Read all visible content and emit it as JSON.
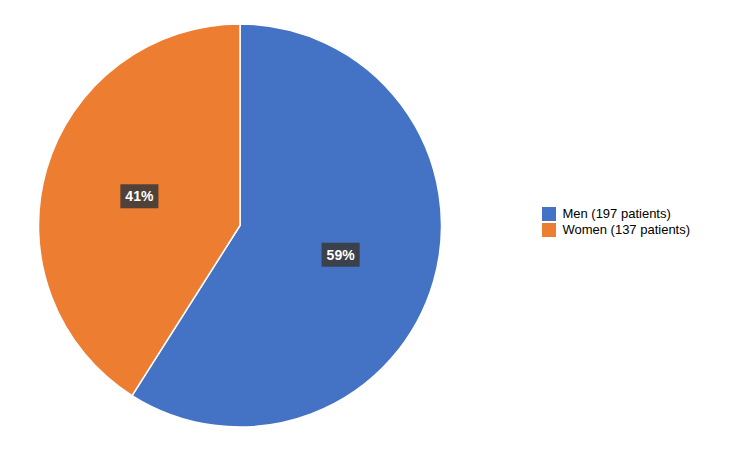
{
  "chart_data": {
    "type": "pie",
    "categories": [
      "Men (197 patients)",
      "Women (137 patients)"
    ],
    "values": [
      59,
      41
    ],
    "value_labels": [
      "59%",
      "41%"
    ],
    "colors": [
      "#4472C4",
      "#ED7D31"
    ],
    "data_labels": true,
    "legend": "right"
  }
}
